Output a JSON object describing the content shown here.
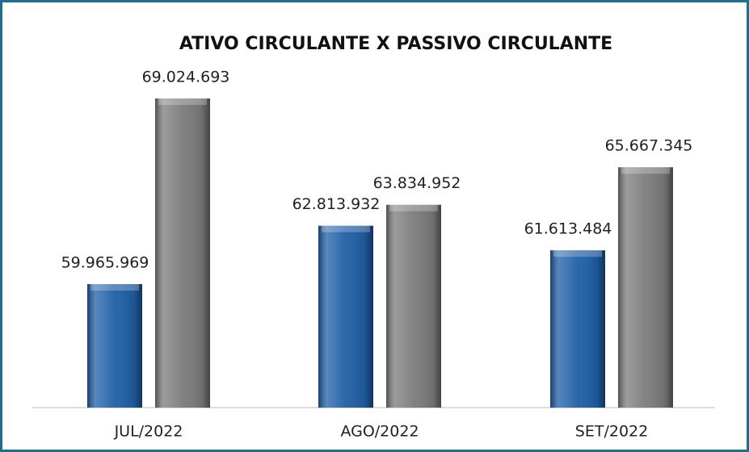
{
  "chart_data": {
    "type": "bar",
    "title": "ATIVO CIRCULANTE X PASSIVO CIRCULANTE",
    "categories": [
      "JUL/2022",
      "AGO/2022",
      "SET/2022"
    ],
    "series": [
      {
        "color": "#1f5fa6",
        "values": [
          59965969,
          62813932,
          61613484
        ],
        "value_labels": [
          "59.965.969",
          "62.813.932",
          "61.613.484"
        ]
      },
      {
        "color": "#7b7b7b",
        "values": [
          69024693,
          63834952,
          65667345
        ],
        "value_labels": [
          "69.024.693",
          "63.834.952",
          "65.667.345"
        ]
      }
    ],
    "ylim": [
      53940000,
      69890000
    ]
  }
}
